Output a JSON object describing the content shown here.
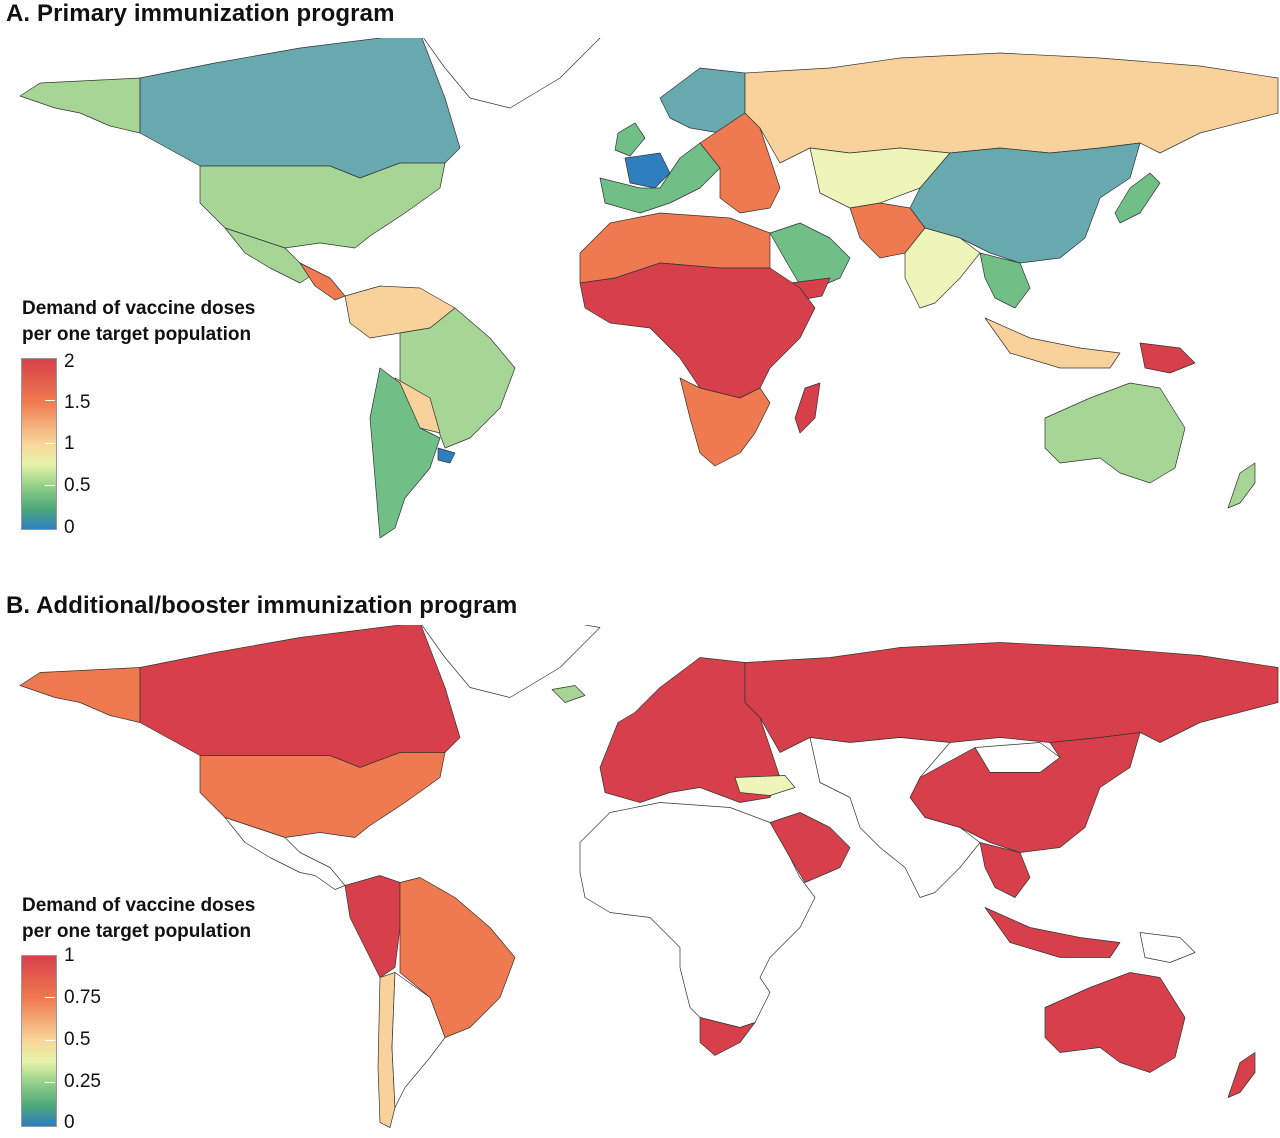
{
  "panel_a": {
    "title": "A. Primary immunization program",
    "legend": {
      "title_line1": "Demand of vaccine doses",
      "title_line2": "per one target population",
      "ticks": [
        "2",
        "1.5",
        "1",
        "0.5",
        "0"
      ]
    }
  },
  "panel_b": {
    "title": "B. Additional/booster immunization program",
    "legend": {
      "title_line1": "Demand of vaccine doses",
      "title_line2": "per one target population",
      "ticks": [
        "1",
        "0.75",
        "0.5",
        "0.25",
        "0"
      ]
    }
  },
  "colors": {
    "red": "#d7404a",
    "orange": "#ef7a4f",
    "light_orange": "#f9d19a",
    "pale_yellow": "#eef5b8",
    "light_green": "#a6d596",
    "green": "#6fbf87",
    "teal": "#67a9ae",
    "blue": "#2f7fbf",
    "no_data": "#ffffff"
  },
  "chart_data": [
    {
      "type": "heatmap",
      "title": "A. Primary immunization program",
      "legend_title": "Demand of vaccine doses per one target population",
      "scale": {
        "min": 0,
        "max": 2,
        "ticks": [
          0,
          0.5,
          1,
          1.5,
          2
        ]
      },
      "regions": [
        {
          "region": "Canada",
          "level": "teal"
        },
        {
          "region": "Alaska",
          "level": "light_green"
        },
        {
          "region": "United States",
          "level": "light_green"
        },
        {
          "region": "Mexico",
          "level": "light_green"
        },
        {
          "region": "Central America",
          "level": "orange"
        },
        {
          "region": "Colombia / Venezuela",
          "level": "light_orange"
        },
        {
          "region": "Brazil",
          "level": "light_green"
        },
        {
          "region": "Bolivia / Paraguay",
          "level": "light_orange"
        },
        {
          "region": "Argentina / Chile",
          "level": "green"
        },
        {
          "region": "Uruguay",
          "level": "blue"
        },
        {
          "region": "Greenland",
          "level": "no_data"
        },
        {
          "region": "Scandinavia",
          "level": "teal"
        },
        {
          "region": "France",
          "level": "blue"
        },
        {
          "region": "Western Europe",
          "level": "green"
        },
        {
          "region": "Eastern Europe",
          "level": "orange"
        },
        {
          "region": "Russia",
          "level": "light_orange"
        },
        {
          "region": "Central Asia",
          "level": "pale_yellow"
        },
        {
          "region": "China",
          "level": "teal"
        },
        {
          "region": "Japan",
          "level": "green"
        },
        {
          "region": "India",
          "level": "pale_yellow"
        },
        {
          "region": "Afghanistan / Pakistan",
          "level": "orange"
        },
        {
          "region": "Arabian Peninsula",
          "level": "green"
        },
        {
          "region": "Yemen",
          "level": "red"
        },
        {
          "region": "North Africa",
          "level": "orange"
        },
        {
          "region": "Sub-Saharan Africa",
          "level": "red"
        },
        {
          "region": "Southern Africa",
          "level": "orange"
        },
        {
          "region": "Madagascar",
          "level": "red"
        },
        {
          "region": "Southeast Asia",
          "level": "green"
        },
        {
          "region": "Indonesia",
          "level": "light_orange"
        },
        {
          "region": "Papua New Guinea",
          "level": "red"
        },
        {
          "region": "Australia",
          "level": "light_green"
        },
        {
          "region": "New Zealand",
          "level": "light_green"
        }
      ]
    },
    {
      "type": "heatmap",
      "title": "B. Additional/booster immunization program",
      "legend_title": "Demand of vaccine doses per one target population",
      "scale": {
        "min": 0,
        "max": 1,
        "ticks": [
          0,
          0.25,
          0.5,
          0.75,
          1
        ]
      },
      "regions": [
        {
          "region": "Canada",
          "level": "red"
        },
        {
          "region": "Alaska",
          "level": "orange"
        },
        {
          "region": "United States",
          "level": "orange"
        },
        {
          "region": "Mexico / Central America",
          "level": "no_data"
        },
        {
          "region": "Colombia / Ecuador / Peru",
          "level": "red"
        },
        {
          "region": "Brazil",
          "level": "orange"
        },
        {
          "region": "Chile",
          "level": "light_orange"
        },
        {
          "region": "Argentina",
          "level": "no_data"
        },
        {
          "region": "Greenland",
          "level": "no_data"
        },
        {
          "region": "Iceland",
          "level": "light_green"
        },
        {
          "region": "Europe",
          "level": "red"
        },
        {
          "region": "Turkey",
          "level": "pale_yellow"
        },
        {
          "region": "Russia",
          "level": "red"
        },
        {
          "region": "China",
          "level": "red"
        },
        {
          "region": "Mongolia",
          "level": "no_data"
        },
        {
          "region": "Saudi Arabia",
          "level": "red"
        },
        {
          "region": "Africa",
          "level": "no_data"
        },
        {
          "region": "South Africa",
          "level": "red"
        },
        {
          "region": "India",
          "level": "no_data"
        },
        {
          "region": "Southeast Asia",
          "level": "red"
        },
        {
          "region": "Indonesia",
          "level": "red"
        },
        {
          "region": "Australia",
          "level": "red"
        },
        {
          "region": "New Zealand",
          "level": "red"
        }
      ]
    }
  ]
}
